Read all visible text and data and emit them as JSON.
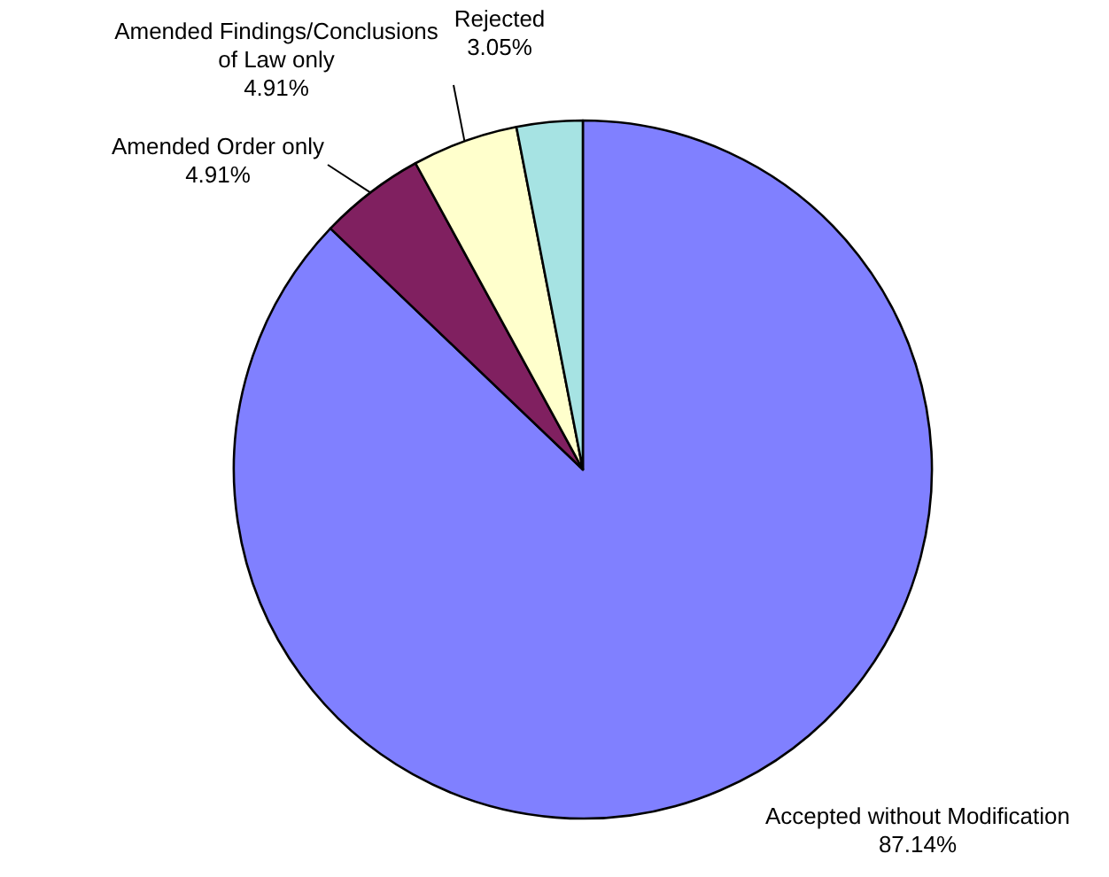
{
  "chart_data": {
    "type": "pie",
    "categories": [
      "Accepted without Modification",
      "Amended Order only",
      "Amended Findings/Conclusions of Law only",
      "Rejected"
    ],
    "values": [
      87.14,
      4.91,
      4.91,
      3.05
    ],
    "colors": [
      "#8080ff",
      "#802060",
      "#ffffcc",
      "#a6e3e3"
    ],
    "value_labels": [
      "87.14%",
      "4.91%",
      "4.91%",
      "3.05%"
    ]
  }
}
